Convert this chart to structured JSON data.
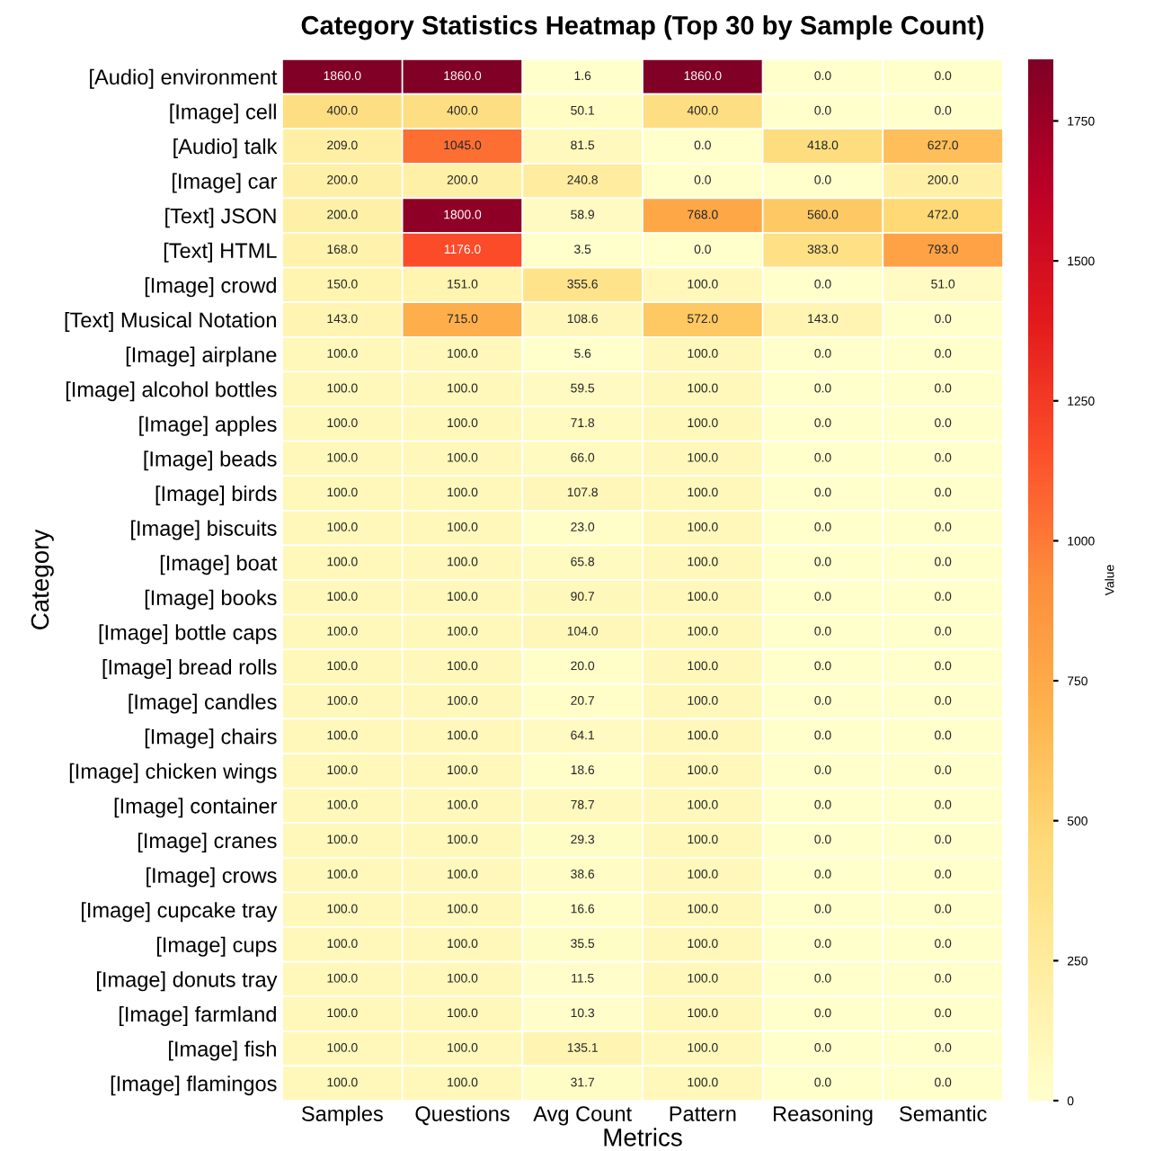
{
  "chart_data": {
    "type": "heatmap",
    "title": "Category Statistics Heatmap (Top 30 by Sample Count)",
    "xlabel": "Metrics",
    "ylabel": "Category",
    "clabel": "Value",
    "categories": [
      "Samples",
      "Questions",
      "Avg Count",
      "Pattern",
      "Reasoning",
      "Semantic"
    ],
    "y_categories": [
      "[Audio] environment",
      "[Image] cell",
      "[Audio] talk",
      "[Image] car",
      "[Text] JSON",
      "[Text] HTML",
      "[Image] crowd",
      "[Text] Musical Notation",
      "[Image] airplane",
      "[Image] alcohol bottles",
      "[Image] apples",
      "[Image] beads",
      "[Image] birds",
      "[Image] biscuits",
      "[Image] boat",
      "[Image] books",
      "[Image] bottle caps",
      "[Image] bread rolls",
      "[Image] candles",
      "[Image] chairs",
      "[Image] chicken wings",
      "[Image] container",
      "[Image] cranes",
      "[Image] crows",
      "[Image] cupcake tray",
      "[Image] cups",
      "[Image] donuts tray",
      "[Image] farmland",
      "[Image] fish",
      "[Image] flamingos"
    ],
    "cells": [
      [
        1860,
        1860,
        1.6,
        1860,
        0,
        0
      ],
      [
        400,
        400,
        50.1,
        400,
        0,
        0
      ],
      [
        209,
        1045,
        81.5,
        0,
        418,
        627
      ],
      [
        200,
        200,
        240.8,
        0,
        0,
        200
      ],
      [
        200,
        1800,
        58.9,
        768,
        560,
        472
      ],
      [
        168,
        1176,
        3.5,
        0,
        383,
        793
      ],
      [
        150,
        151,
        355.6,
        100,
        0,
        51
      ],
      [
        143,
        715,
        108.6,
        572,
        143,
        0
      ],
      [
        100,
        100,
        5.6,
        100,
        0,
        0
      ],
      [
        100,
        100,
        59.5,
        100,
        0,
        0
      ],
      [
        100,
        100,
        71.8,
        100,
        0,
        0
      ],
      [
        100,
        100,
        66.0,
        100,
        0,
        0
      ],
      [
        100,
        100,
        107.8,
        100,
        0,
        0
      ],
      [
        100,
        100,
        23.0,
        100,
        0,
        0
      ],
      [
        100,
        100,
        65.8,
        100,
        0,
        0
      ],
      [
        100,
        100,
        90.7,
        100,
        0,
        0
      ],
      [
        100,
        100,
        104.0,
        100,
        0,
        0
      ],
      [
        100,
        100,
        20.0,
        100,
        0,
        0
      ],
      [
        100,
        100,
        20.7,
        100,
        0,
        0
      ],
      [
        100,
        100,
        64.1,
        100,
        0,
        0
      ],
      [
        100,
        100,
        18.6,
        100,
        0,
        0
      ],
      [
        100,
        100,
        78.7,
        100,
        0,
        0
      ],
      [
        100,
        100,
        29.3,
        100,
        0,
        0
      ],
      [
        100,
        100,
        38.6,
        100,
        0,
        0
      ],
      [
        100,
        100,
        16.6,
        100,
        0,
        0
      ],
      [
        100,
        100,
        35.5,
        100,
        0,
        0
      ],
      [
        100,
        100,
        11.5,
        100,
        0,
        0
      ],
      [
        100,
        100,
        10.3,
        100,
        0,
        0
      ],
      [
        100,
        100,
        135.1,
        100,
        0,
        0
      ],
      [
        100,
        100,
        31.7,
        100,
        0,
        0
      ]
    ],
    "cell_labels": [
      [
        "1860.0",
        "1860.0",
        "1.6",
        "1860.0",
        "0.0",
        "0.0"
      ],
      [
        "400.0",
        "400.0",
        "50.1",
        "400.0",
        "0.0",
        "0.0"
      ],
      [
        "209.0",
        "1045.0",
        "81.5",
        "0.0",
        "418.0",
        "627.0"
      ],
      [
        "200.0",
        "200.0",
        "240.8",
        "0.0",
        "0.0",
        "200.0"
      ],
      [
        "200.0",
        "1800.0",
        "58.9",
        "768.0",
        "560.0",
        "472.0"
      ],
      [
        "168.0",
        "1176.0",
        "3.5",
        "0.0",
        "383.0",
        "793.0"
      ],
      [
        "150.0",
        "151.0",
        "355.6",
        "100.0",
        "0.0",
        "51.0"
      ],
      [
        "143.0",
        "715.0",
        "108.6",
        "572.0",
        "143.0",
        "0.0"
      ],
      [
        "100.0",
        "100.0",
        "5.6",
        "100.0",
        "0.0",
        "0.0"
      ],
      [
        "100.0",
        "100.0",
        "59.5",
        "100.0",
        "0.0",
        "0.0"
      ],
      [
        "100.0",
        "100.0",
        "71.8",
        "100.0",
        "0.0",
        "0.0"
      ],
      [
        "100.0",
        "100.0",
        "66.0",
        "100.0",
        "0.0",
        "0.0"
      ],
      [
        "100.0",
        "100.0",
        "107.8",
        "100.0",
        "0.0",
        "0.0"
      ],
      [
        "100.0",
        "100.0",
        "23.0",
        "100.0",
        "0.0",
        "0.0"
      ],
      [
        "100.0",
        "100.0",
        "65.8",
        "100.0",
        "0.0",
        "0.0"
      ],
      [
        "100.0",
        "100.0",
        "90.7",
        "100.0",
        "0.0",
        "0.0"
      ],
      [
        "100.0",
        "100.0",
        "104.0",
        "100.0",
        "0.0",
        "0.0"
      ],
      [
        "100.0",
        "100.0",
        "20.0",
        "100.0",
        "0.0",
        "0.0"
      ],
      [
        "100.0",
        "100.0",
        "20.7",
        "100.0",
        "0.0",
        "0.0"
      ],
      [
        "100.0",
        "100.0",
        "64.1",
        "100.0",
        "0.0",
        "0.0"
      ],
      [
        "100.0",
        "100.0",
        "18.6",
        "100.0",
        "0.0",
        "0.0"
      ],
      [
        "100.0",
        "100.0",
        "78.7",
        "100.0",
        "0.0",
        "0.0"
      ],
      [
        "100.0",
        "100.0",
        "29.3",
        "100.0",
        "0.0",
        "0.0"
      ],
      [
        "100.0",
        "100.0",
        "38.6",
        "100.0",
        "0.0",
        "0.0"
      ],
      [
        "100.0",
        "100.0",
        "16.6",
        "100.0",
        "0.0",
        "0.0"
      ],
      [
        "100.0",
        "100.0",
        "35.5",
        "100.0",
        "0.0",
        "0.0"
      ],
      [
        "100.0",
        "100.0",
        "11.5",
        "100.0",
        "0.0",
        "0.0"
      ],
      [
        "100.0",
        "100.0",
        "10.3",
        "100.0",
        "0.0",
        "0.0"
      ],
      [
        "100.0",
        "100.0",
        "135.1",
        "100.0",
        "0.0",
        "0.0"
      ],
      [
        "100.0",
        "100.0",
        "31.7",
        "100.0",
        "0.0",
        "0.0"
      ]
    ],
    "clim": [
      0,
      1860
    ],
    "cticks": [
      0,
      250,
      500,
      750,
      1000,
      1250,
      1500,
      1750
    ]
  }
}
